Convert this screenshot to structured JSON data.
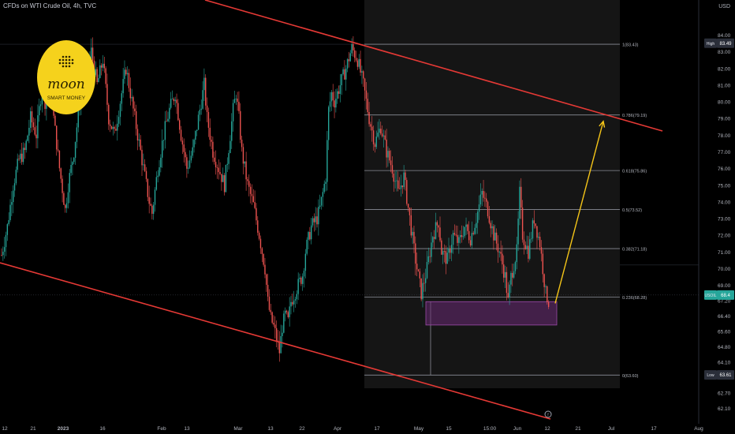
{
  "header": {
    "symbol_title": "CFDs on WTI Crude Oil, 4h, TVC",
    "currency": "USD"
  },
  "logo": {
    "text_top": "moon",
    "text_bottom": "SMART MONEY",
    "color": "#f5d21c"
  },
  "colors": {
    "up": "#26a69a",
    "down": "#ef5350",
    "channel": "#e53935",
    "projection": "#f5c518",
    "zone": "#6a2a74"
  },
  "chart_data": {
    "type": "candlestick",
    "y_axis": {
      "ylim": [
        61.6,
        84.6
      ],
      "ticks": [
        "84.00",
        "83.00",
        "82.00",
        "81.00",
        "80.00",
        "79.00",
        "78.00",
        "77.00",
        "76.00",
        "75.00",
        "74.00",
        "73.00",
        "72.00",
        "71.00",
        "70.00",
        "69.00",
        "67.20",
        "66.40",
        "65.60",
        "64.80",
        "64.10",
        "63.40",
        "62.70",
        "62.10"
      ]
    },
    "x_axis": {
      "ticks": [
        "12",
        "21",
        "2023",
        "16",
        "Feb",
        "13",
        "Mar",
        "13",
        "22",
        "Apr",
        "17",
        "May",
        "15",
        "15:00",
        "Jun",
        "12",
        "21",
        "Jul",
        "17",
        "Aug"
      ]
    },
    "price_path": [
      [
        0,
        70.8
      ],
      [
        2,
        72.5
      ],
      [
        4,
        75
      ],
      [
        6,
        76.5
      ],
      [
        8,
        77
      ],
      [
        10,
        79
      ],
      [
        12,
        78
      ],
      [
        14,
        81
      ],
      [
        15,
        80
      ],
      [
        17,
        82
      ],
      [
        18,
        79
      ],
      [
        20,
        76
      ],
      [
        22,
        73.5
      ],
      [
        23,
        75
      ],
      [
        25,
        77
      ],
      [
        27,
        80
      ],
      [
        29,
        81
      ],
      [
        31,
        83
      ],
      [
        33,
        81
      ],
      [
        35,
        82.5
      ],
      [
        37,
        79
      ],
      [
        39,
        78
      ],
      [
        41,
        80
      ],
      [
        43,
        82
      ],
      [
        45,
        80
      ],
      [
        47,
        78
      ],
      [
        49,
        76
      ],
      [
        51,
        74
      ],
      [
        52,
        73.3
      ],
      [
        54,
        76
      ],
      [
        56,
        78
      ],
      [
        58,
        79.5
      ],
      [
        60,
        80.5
      ],
      [
        62,
        78
      ],
      [
        64,
        76
      ],
      [
        66,
        77
      ],
      [
        68,
        79
      ],
      [
        70,
        81
      ],
      [
        71,
        79
      ],
      [
        73,
        77
      ],
      [
        75,
        76
      ],
      [
        77,
        75
      ],
      [
        78,
        76.5
      ],
      [
        79,
        78
      ],
      [
        80,
        79.5
      ],
      [
        81,
        80.5
      ],
      [
        82,
        79
      ],
      [
        83,
        77
      ],
      [
        85,
        75
      ],
      [
        87,
        73.8
      ],
      [
        89,
        72
      ],
      [
        91,
        70
      ],
      [
        92,
        68
      ],
      [
        93,
        67
      ],
      [
        94,
        66.5
      ],
      [
        95,
        65.8
      ],
      [
        96,
        65
      ],
      [
        97,
        66.5
      ],
      [
        98,
        67.2
      ],
      [
        99,
        66.8
      ],
      [
        100,
        68
      ],
      [
        102,
        68.8
      ],
      [
        104,
        69.6
      ],
      [
        105,
        71
      ],
      [
        107,
        72.5
      ],
      [
        109,
        73
      ],
      [
        110,
        73.6
      ],
      [
        111,
        74.5
      ],
      [
        112,
        75.5
      ],
      [
        113,
        79.5
      ],
      [
        114,
        80.5
      ],
      [
        115,
        80
      ],
      [
        117,
        81
      ],
      [
        119,
        82
      ],
      [
        121,
        83.2
      ],
      [
        123,
        82.5
      ],
      [
        125,
        81
      ],
      [
        127,
        79
      ],
      [
        129,
        77.5
      ],
      [
        131,
        78.5
      ],
      [
        133,
        77
      ],
      [
        135,
        76
      ],
      [
        137,
        74.5
      ],
      [
        139,
        75.5
      ],
      [
        141,
        73
      ],
      [
        143,
        70.5
      ],
      [
        145,
        68.5
      ],
      [
        147,
        70
      ],
      [
        149,
        72
      ],
      [
        151,
        72.8
      ],
      [
        152,
        71
      ],
      [
        154,
        70.5
      ],
      [
        156,
        72
      ],
      [
        158,
        71.5
      ],
      [
        160,
        72.5
      ],
      [
        162,
        71.8
      ],
      [
        164,
        73
      ],
      [
        166,
        74.5
      ],
      [
        168,
        73.5
      ],
      [
        170,
        72
      ],
      [
        172,
        71
      ],
      [
        174,
        69.5
      ],
      [
        175,
        68
      ],
      [
        176,
        69.5
      ],
      [
        178,
        71
      ],
      [
        179,
        74.5
      ],
      [
        180,
        72
      ],
      [
        182,
        71
      ],
      [
        184,
        73
      ],
      [
        186,
        71.5
      ],
      [
        187,
        70
      ],
      [
        188,
        68.5
      ],
      [
        189,
        68
      ]
    ],
    "fibonacci": [
      {
        "ratio": "1",
        "label": "1(83.43)",
        "value": 83.43
      },
      {
        "ratio": "0.786",
        "label": "0.786(79.19)",
        "value": 79.19
      },
      {
        "ratio": "0.618",
        "label": "0.618(75.86)",
        "value": 75.86
      },
      {
        "ratio": "0.5",
        "label": "0.5(73.52)",
        "value": 73.52
      },
      {
        "ratio": "0.382",
        "label": "0.382(71.18)",
        "value": 71.18
      },
      {
        "ratio": "0.236",
        "label": "0.236(68.28)",
        "value": 68.28
      },
      {
        "ratio": "0",
        "label": "0(63.60)",
        "value": 63.6
      }
    ],
    "price_labels": [
      {
        "tag": "High",
        "value": "83.49"
      },
      {
        "tag": "USOIL",
        "value": "68.4"
      },
      {
        "tag": "Low",
        "value": "63.61"
      }
    ],
    "demand_zone": {
      "low": 66.6,
      "high": 68.0
    },
    "projection_target": 79.0
  }
}
